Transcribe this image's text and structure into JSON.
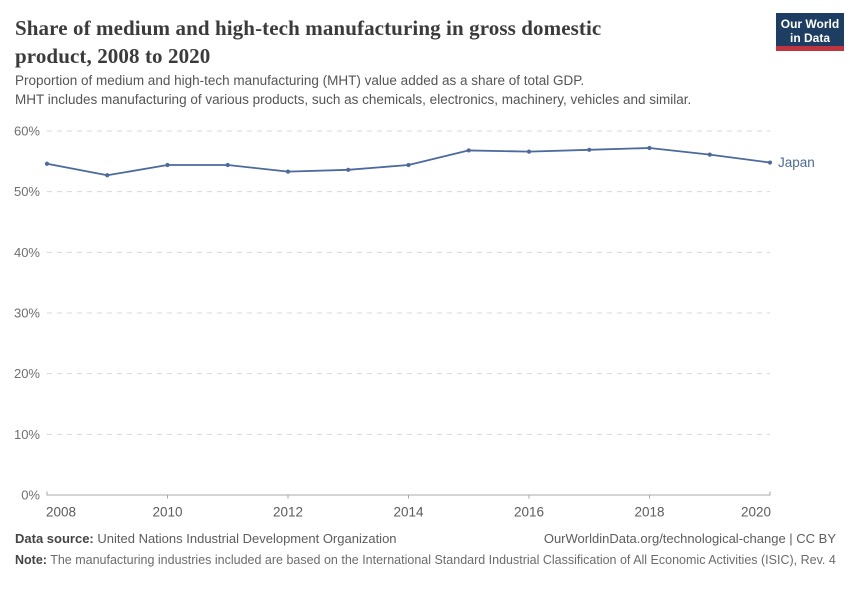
{
  "header": {
    "title": "Share of medium and high-tech manufacturing in gross domestic product, 2008 to 2020",
    "subtitle_line1": "Proportion of medium and high-tech manufacturing (MHT) value added as a share of total GDP.",
    "subtitle_line2": "MHT includes manufacturing of various products, such as chemicals, electronics, machinery, vehicles and similar.",
    "logo": {
      "line1": "Our World",
      "line2": "in Data",
      "bg_color": "#1d3d63",
      "stripe_color": "#c0343f"
    }
  },
  "chart_data": {
    "type": "line",
    "title": "Share of medium and high-tech manufacturing in gross domestic product, 2008 to 2020",
    "x": [
      2008,
      2009,
      2010,
      2011,
      2012,
      2013,
      2014,
      2015,
      2016,
      2017,
      2018,
      2019,
      2020
    ],
    "series": [
      {
        "name": "Japan",
        "color": "#4c6a9c",
        "values": [
          54.6,
          52.7,
          54.4,
          54.4,
          53.3,
          53.6,
          54.4,
          56.8,
          56.6,
          56.9,
          57.2,
          56.1,
          54.8
        ]
      }
    ],
    "ylim": [
      0,
      60
    ],
    "yticks": [
      0,
      10,
      20,
      30,
      40,
      50,
      60
    ],
    "ytick_suffix": "%",
    "xticks": [
      2008,
      2010,
      2012,
      2014,
      2016,
      2018,
      2020
    ],
    "grid": "horizontal-dashed",
    "legend": "end-of-line-label"
  },
  "footer": {
    "datasource_label": "Data source:",
    "datasource_value": "United Nations Industrial Development Organization",
    "credit": "OurWorldinData.org/technological-change | CC BY",
    "note_label": "Note:",
    "note_value": "The manufacturing industries included are based on the International Standard Industrial Classification of All Economic Activities (ISIC), Rev. 4"
  }
}
